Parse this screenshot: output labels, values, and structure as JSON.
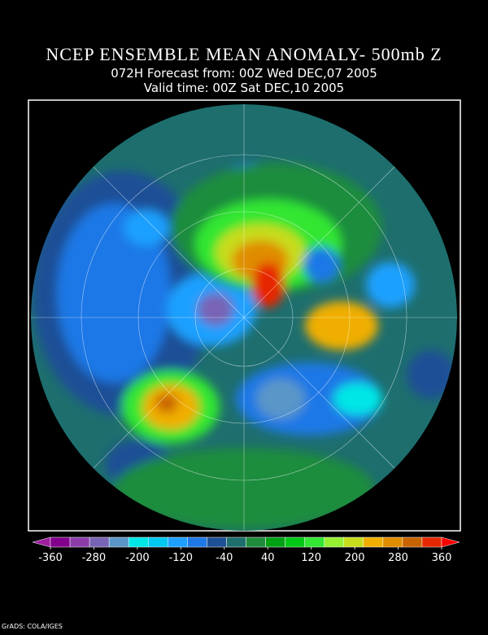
{
  "header": {
    "title": "NCEP ENSEMBLE MEAN ANOMALY- 500mb Z",
    "subtitle_lines": [
      "072H Forecast from: 00Z Wed DEC,07 2005",
      "Valid time: 00Z Sat DEC,10 2005"
    ]
  },
  "colorbar": {
    "colors": [
      "#a01ea0",
      "#82008c",
      "#8c3ca8",
      "#7864b4",
      "#5a96c8",
      "#00e6e6",
      "#00c8f0",
      "#1ea0ff",
      "#1e78e6",
      "#1e5096",
      "#1e6e6e",
      "#1e8c3c",
      "#00a014",
      "#00c814",
      "#32e632",
      "#96f032",
      "#c8dc1e",
      "#f0af00",
      "#e08c00",
      "#c86400",
      "#e62800",
      "#ff0000"
    ],
    "labels": [
      -360,
      -280,
      -200,
      -120,
      -40,
      40,
      120,
      200,
      280,
      360
    ]
  },
  "footer": "GrADS: COLA/IGES"
}
